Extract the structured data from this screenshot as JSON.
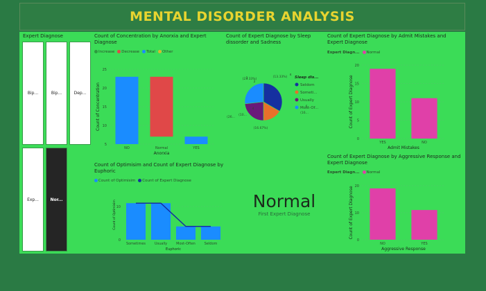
{
  "header": {
    "title": "MENTAL DISORDER ANALYSIS"
  },
  "slicer": {
    "title": "Expert Diagnose",
    "items": [
      "Bip...",
      "Bip...",
      "Dep...",
      "Exp...",
      "Nor..."
    ],
    "selected_index": 4
  },
  "colors": {
    "page_bg": "#2a7a44",
    "canvas_bg": "#3bdc57",
    "title": "#e8d430",
    "blue": "#1a8cff",
    "red": "#e04848",
    "magenta": "#e040a8",
    "navy": "#1530a0",
    "purple": "#6a1a7a",
    "orange": "#e8702a"
  },
  "card": {
    "value": "Normal",
    "label": "First Expert Diagnose"
  },
  "chart_data": [
    {
      "id": "concentration",
      "type": "bar",
      "title": "Count of Concentration by Anorxia and Expert Diagnose",
      "legend": [
        {
          "name": "Increase",
          "color": "#2e9a3e"
        },
        {
          "name": "Decrease",
          "color": "#e04848"
        },
        {
          "name": "Total",
          "color": "#1a8cff"
        },
        {
          "name": "Other",
          "color": "#d8b830"
        }
      ],
      "categories": [
        "NO",
        "Normal",
        "YES"
      ],
      "bars": [
        {
          "category": "NO",
          "start": 5,
          "end": 23,
          "color": "#1a8cff"
        },
        {
          "category": "Normal",
          "start": 7,
          "end": 23,
          "color": "#e04848"
        },
        {
          "category": "YES",
          "start": 5,
          "end": 7,
          "color": "#1a8cff"
        }
      ],
      "xlabel": "Anorxia",
      "ylabel": "Count of Concentration",
      "yticks": [
        5,
        10,
        15,
        20,
        25
      ],
      "ylim": [
        5,
        25
      ]
    },
    {
      "id": "sleep",
      "type": "pie",
      "title": "Count of Expert Diagnose by Sleep dissorder and Sadness",
      "legend_title": "Sleep dis...",
      "slices": [
        {
          "name": "Seldom",
          "value": 33.33,
          "color": "#1530a0"
        },
        {
          "name": "Someti...",
          "value": 16.67,
          "color": "#e8702a"
        },
        {
          "name": "Usually",
          "value": 23.33,
          "color": "#6a1a7a"
        },
        {
          "name": "Most-Of...",
          "value": 26.67,
          "color": "#1a8cff"
        }
      ],
      "labels": [
        "(23.33%)",
        "(13.33%)",
        "(16.67%)",
        "(16...",
        "(26...",
        "(10...",
        "3",
        "2",
        "4",
        "6",
        "4"
      ]
    },
    {
      "id": "admit",
      "type": "bar",
      "title": "Count of Expert Diagnose by Admit Mistakes and Expert Diagnose",
      "legend_title": "Expert Diagn...",
      "legend": [
        {
          "name": "Normal",
          "color": "#e040a8"
        }
      ],
      "categories": [
        "YES",
        "NO"
      ],
      "values": [
        19,
        11
      ],
      "xlabel": "Admit Mistakes",
      "ylabel": "Count of Expert Diagnose",
      "yticks": [
        0,
        5,
        10,
        15,
        20
      ],
      "ylim": [
        0,
        20
      ]
    },
    {
      "id": "optimism",
      "type": "bar",
      "title": "Count of Optimisim and Count of Expert Diagnose by Euphoric",
      "legend": [
        {
          "name": "Count of Optimisim",
          "color": "#1a8cff"
        },
        {
          "name": "Count of Expert Diagnose",
          "color": "#1530a0"
        }
      ],
      "categories": [
        "Sometimes",
        "Usually",
        "Most-Often",
        "Seldom"
      ],
      "bar_values": [
        11,
        11,
        4,
        4
      ],
      "line_values": [
        11,
        11,
        4,
        4
      ],
      "xlabel": "Euphoric",
      "ylabel": "Count of Optimisim",
      "yticks": [
        0,
        10
      ],
      "ylim": [
        0,
        15
      ]
    },
    {
      "id": "aggressive",
      "type": "bar",
      "title": "Count of Expert Diagnose by Aggressive Response and Expert Diagnose",
      "legend_title": "Expert Diagn...",
      "legend": [
        {
          "name": "Normal",
          "color": "#e040a8"
        }
      ],
      "categories": [
        "NO",
        "YES"
      ],
      "values": [
        19,
        11
      ],
      "xlabel": "Aggressive Response",
      "ylabel": "Count of Expert Diagnose",
      "yticks": [
        0,
        10,
        20
      ],
      "ylim": [
        0,
        20
      ]
    }
  ]
}
